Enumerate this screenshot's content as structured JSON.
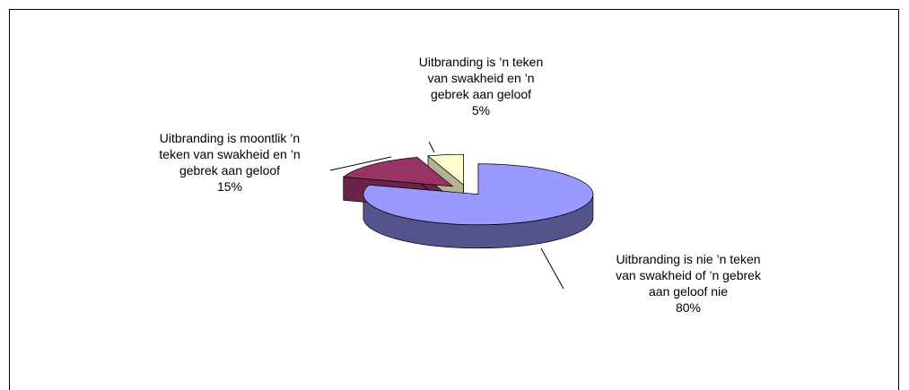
{
  "chart_data": {
    "type": "pie3d",
    "categories": [
      "Uitbranding is nie ’n teken van swakheid of ’n gebrek aan geloof nie",
      "Uitbranding is moontlik ’n teken van swakheid en ’n gebrek aan geloof",
      "Uitbranding is ’n teken van swakheid en ’n gebrek aan geloof"
    ],
    "values": [
      80,
      15,
      5
    ],
    "value_labels": [
      "80%",
      "15%",
      "5%"
    ],
    "colors": [
      "#9999ff",
      "#993366",
      "#ffffcc"
    ]
  }
}
